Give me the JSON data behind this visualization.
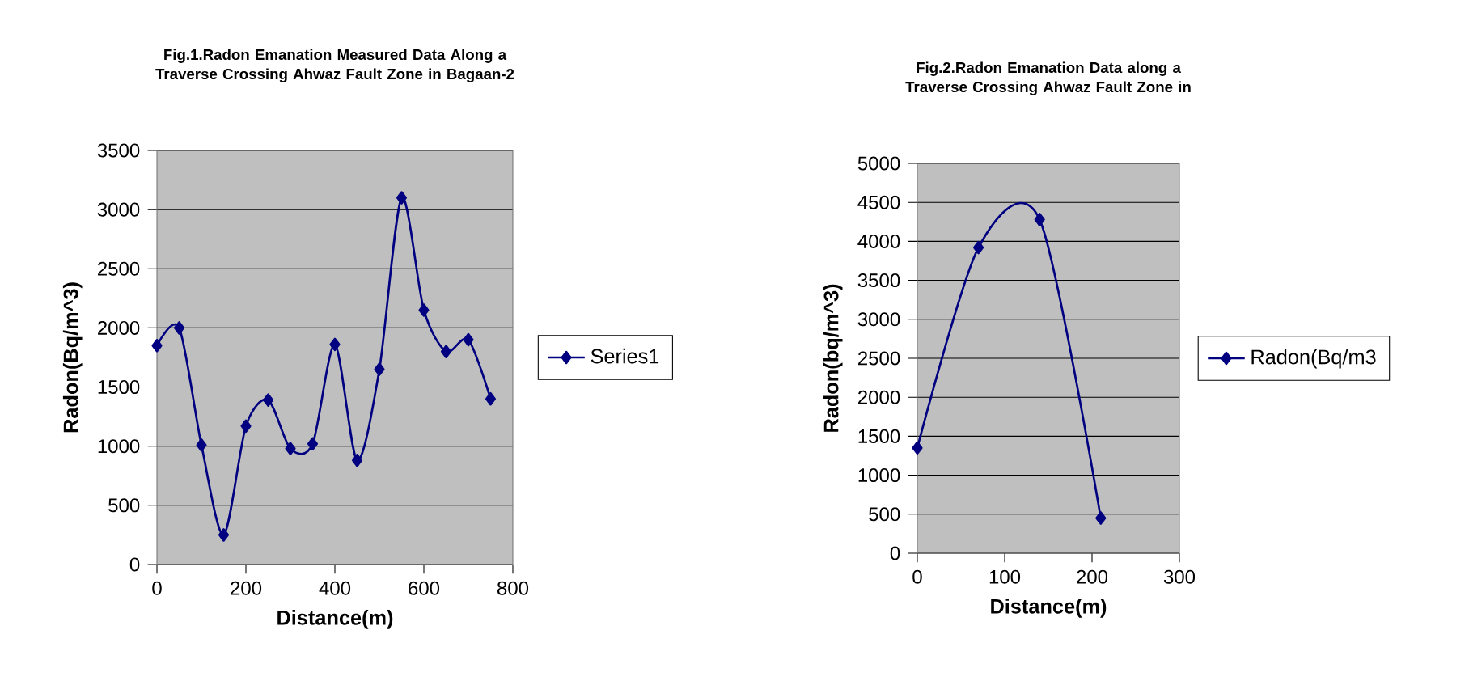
{
  "chart_data": [
    {
      "type": "line",
      "title": "Fig.1.Radon Emanation Measured Data Along a Traverse Crossing Ahwaz Fault Zone in Bagaan-2",
      "xlabel": "Distance(m)",
      "ylabel": "Radon(Bq/m^3)",
      "x": [
        0,
        50,
        100,
        150,
        200,
        250,
        300,
        350,
        400,
        450,
        500,
        550,
        600,
        650,
        700,
        750
      ],
      "series": [
        {
          "name": "Series1",
          "color": "#000080",
          "values": [
            1850,
            2000,
            1010,
            250,
            1170,
            1390,
            980,
            1020,
            1860,
            880,
            1650,
            3100,
            2150,
            1800,
            1900,
            1400
          ]
        }
      ],
      "xlim": [
        0,
        800
      ],
      "xticks": [
        0,
        200,
        400,
        600,
        800
      ],
      "ylim": [
        0,
        3500
      ],
      "yticks": [
        0,
        500,
        1000,
        1500,
        2000,
        2500,
        3000,
        3500
      ],
      "grid": "y",
      "legend": "right",
      "marker": "diamond",
      "line_style": "solid"
    },
    {
      "type": "line",
      "title": "Fig.2.Radon Emanation Data along a Traverse Crossing Ahwaz Fault Zone in",
      "xlabel": "Distance(m)",
      "ylabel": "Radon(bq/m^3)",
      "x": [
        0,
        70,
        140,
        210
      ],
      "series": [
        {
          "name": "Radon(Bq/m3",
          "color": "#000080",
          "values": [
            1350,
            3920,
            4280,
            450
          ]
        }
      ],
      "xlim": [
        0,
        300
      ],
      "xticks": [
        0,
        100,
        200,
        300
      ],
      "ylim": [
        0,
        5000
      ],
      "yticks": [
        0,
        500,
        1000,
        1500,
        2000,
        2500,
        3000,
        3500,
        4000,
        4500,
        5000
      ],
      "grid": "y",
      "legend": "right",
      "marker": "diamond",
      "line_style": "solid"
    }
  ]
}
